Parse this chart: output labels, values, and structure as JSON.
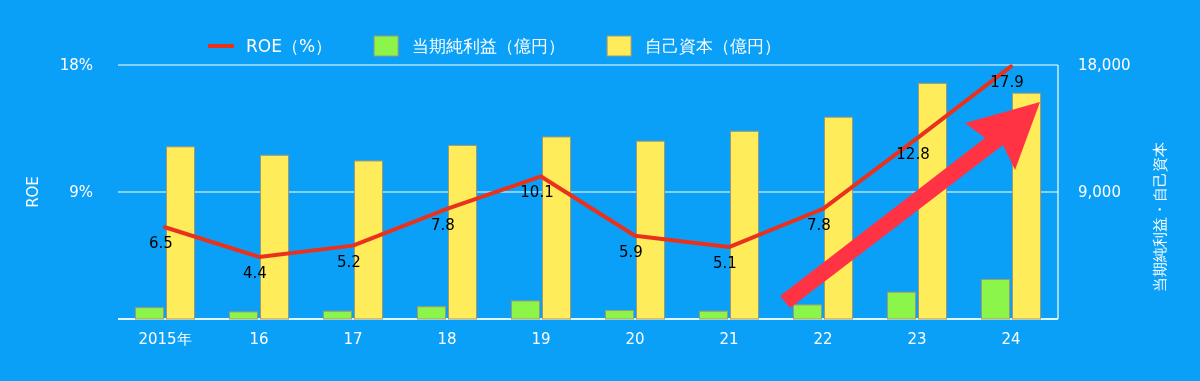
{
  "chart_data": {
    "type": "bar",
    "categories": [
      "2015年",
      "16",
      "17",
      "18",
      "19",
      "20",
      "21",
      "22",
      "23",
      "24"
    ],
    "series": [
      {
        "name": "ROE（%）",
        "type": "line",
        "color": "#e8321e",
        "values": [
          6.5,
          4.4,
          5.2,
          7.8,
          10.1,
          5.9,
          5.1,
          7.8,
          12.8,
          17.9
        ],
        "value_labels": [
          "6.5",
          "4.4",
          "5.2",
          "7.8",
          "10.1",
          "5.9",
          "5.1",
          "7.8",
          "12.8",
          "17.9"
        ]
      },
      {
        "name": "当期純利益（億円）",
        "color": "#8cf54a",
        "axis": "y2",
        "values": [
          800,
          500,
          550,
          870,
          1280,
          600,
          550,
          1000,
          1900,
          2800
        ]
      },
      {
        "name": "自己資本（億円）",
        "color": "#ffec5a",
        "axis": "y2",
        "values": [
          12200,
          11600,
          11200,
          12300,
          12900,
          12600,
          13300,
          14300,
          16700,
          16000
        ]
      }
    ],
    "ylabel": "ROE",
    "y2label": "当期純利益・自己資本",
    "ylim": [
      0,
      18
    ],
    "yticks": [
      {
        "value": 0,
        "label": null
      },
      {
        "value": 9,
        "label": "9%"
      },
      {
        "value": 18,
        "label": "18%"
      }
    ],
    "y2lim": [
      0,
      18000
    ],
    "y2ticks": [
      {
        "value": 0,
        "label": null
      },
      {
        "value": 9000,
        "label": "9,000"
      },
      {
        "value": 18000,
        "label": "18,000"
      }
    ],
    "grid": "y",
    "legend": "top"
  }
}
